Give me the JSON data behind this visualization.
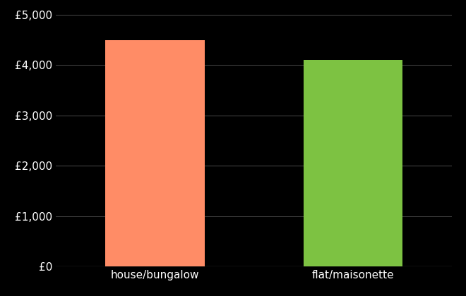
{
  "categories": [
    "house/bungalow",
    "flat/maisonette"
  ],
  "values": [
    4500,
    4100
  ],
  "bar_colors": [
    "#FF8C66",
    "#7DC242"
  ],
  "background_color": "#000000",
  "text_color": "#ffffff",
  "grid_color": "#555555",
  "ylim": [
    0,
    5000
  ],
  "yticks": [
    0,
    1000,
    2000,
    3000,
    4000,
    5000
  ],
  "ytick_labels": [
    "£0",
    "£1,000",
    "£2,000",
    "£3,000",
    "£4,000",
    "£5,000"
  ],
  "bar_width": 0.25,
  "tick_fontsize": 11,
  "xlim": [
    0,
    1
  ]
}
